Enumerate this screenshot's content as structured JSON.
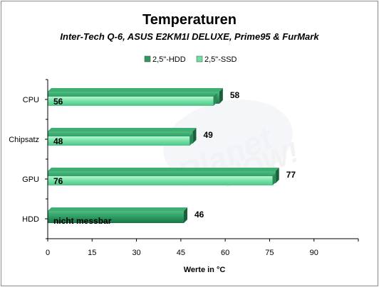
{
  "chart_data": {
    "type": "bar",
    "orientation": "horizontal",
    "title": "Temperaturen",
    "subtitle": "Inter-Tech Q-6, ASUS E2KM1I DELUXE, Prime95 & FurMark",
    "xlabel": "Werte in °C",
    "ylabel": "",
    "xlim": [
      0,
      105
    ],
    "xticks": [
      0,
      15,
      30,
      45,
      60,
      75,
      90
    ],
    "categories": [
      "CPU",
      "Chipsatz",
      "GPU",
      "HDD"
    ],
    "series": [
      {
        "name": "2,5\"-HDD",
        "color": "#2e9a62",
        "values": [
          58,
          49,
          77,
          46
        ]
      },
      {
        "name": "2,5\"-SSD",
        "color": "#6ee0a2",
        "values": [
          56,
          48,
          76,
          null
        ]
      }
    ],
    "inner_labels": [
      "56",
      "48",
      "76",
      "nicht messbar"
    ],
    "outer_labels": [
      "58",
      "49",
      "77",
      "46"
    ],
    "legend_position": "top-right",
    "grid": false,
    "watermark": "PlanetNOW!"
  }
}
